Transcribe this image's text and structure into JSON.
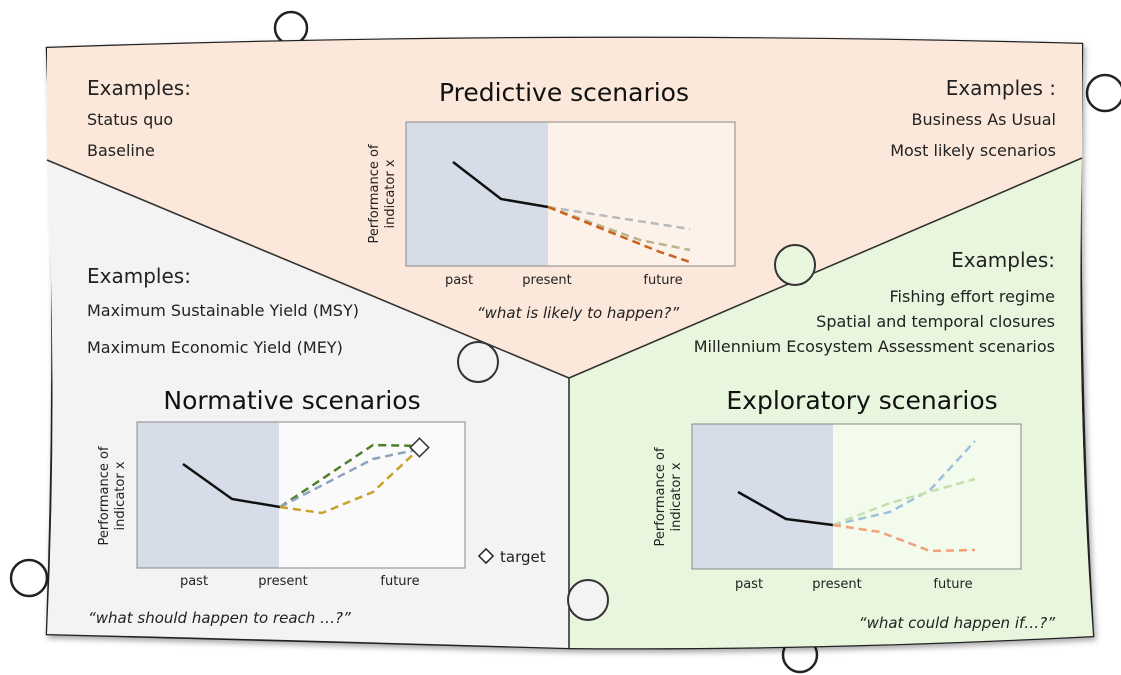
{
  "predictive": {
    "title": "Predictive scenarios",
    "question": "“what is likely to happen?”",
    "examples_left": {
      "title": "Examples:",
      "items": [
        "Status quo",
        "Baseline"
      ]
    },
    "examples_right": {
      "title": "Examples :",
      "items": [
        "Business As Usual",
        "Most likely scenarios"
      ]
    },
    "colors": {
      "panel": "#fce8da",
      "past": "#d6dde8"
    }
  },
  "normative": {
    "title": "Normative scenarios",
    "question": "“what should happen to reach …?”",
    "examples": {
      "title": "Examples:",
      "items": [
        "Maximum Sustainable Yield (MSY)",
        "Maximum Economic Yield (MEY)"
      ]
    },
    "legend_label": "target",
    "colors": {
      "panel": "#f3f3f3",
      "past": "#d6dde8"
    }
  },
  "exploratory": {
    "title": "Exploratory scenarios",
    "question": "“what could happen if…?”",
    "examples": {
      "title": "Examples:",
      "items": [
        "Fishing effort regime",
        "Spatial and temporal closures",
        "Millennium Ecosystem Assessment scenarios"
      ]
    },
    "colors": {
      "panel": "#e8f6de",
      "past": "#d6dde8"
    }
  },
  "axis": {
    "ylabel_line1": "Performance of",
    "ylabel_line2": "indicator x",
    "x_past": "past",
    "x_present": "present",
    "x_future": "future"
  },
  "icons": [
    "target-diamond-icon",
    "puzzle-knob-icon"
  ]
}
